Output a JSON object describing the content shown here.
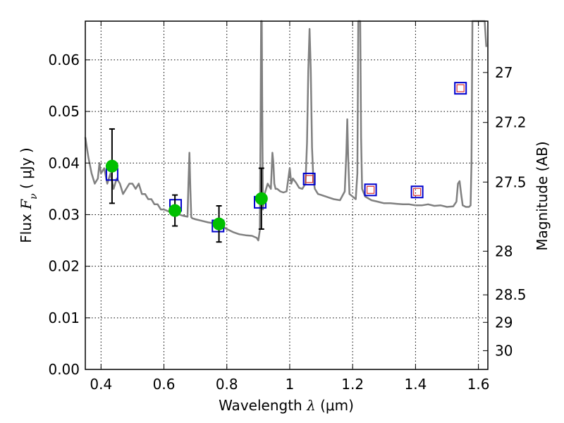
{
  "chart_data": {
    "type": "scatter",
    "xlabel_prefix": "Wavelength  ",
    "xlabel_symbol": "λ",
    "xlabel_unit": " (μm)",
    "ylabel_prefix": "Flux  ",
    "ylabel_symbol": "F",
    "ylabel_subscript": "ν",
    "ylabel_unit": "  ( μJy )",
    "y2label": "Magnitude (AB)",
    "xlim": [
      0.35,
      1.63
    ],
    "ylim": [
      0.0,
      0.0675
    ],
    "grid": true,
    "x_ticks": [
      0.4,
      0.6,
      0.8,
      1.0,
      1.2,
      1.4,
      1.6
    ],
    "x_tick_labels": [
      "0.4",
      "0.6",
      "0.8",
      "1",
      "1.2",
      "1.4",
      "1.6"
    ],
    "y_ticks": [
      0.0,
      0.01,
      0.02,
      0.03,
      0.04,
      0.05,
      0.06
    ],
    "y_tick_labels": [
      "0.00",
      "0.01",
      "0.02",
      "0.03",
      "0.04",
      "0.05",
      "0.06"
    ],
    "y2_ticks": [
      27.0,
      27.2,
      27.5,
      28.0,
      28.5,
      29.0,
      30.0
    ],
    "y2_tick_labels": [
      "27",
      "27.2",
      "27.5",
      "28",
      "28.5",
      "29",
      "30"
    ],
    "colors": {
      "sed": "#808080",
      "observed": "#00c000",
      "model_box": "#0000cc",
      "inner_box": "#dd3333",
      "errorbar": "#000000",
      "grid": "#000000"
    },
    "observed": [
      {
        "x": 0.435,
        "y": 0.0394,
        "err": 0.0072
      },
      {
        "x": 0.635,
        "y": 0.0308,
        "err": 0.003
      },
      {
        "x": 0.775,
        "y": 0.0282,
        "err": 0.0035
      },
      {
        "x": 0.91,
        "y": 0.0331,
        "err": 0.0059
      }
    ],
    "model_points": [
      {
        "x": 0.435,
        "y": 0.0378,
        "inner": false
      },
      {
        "x": 0.637,
        "y": 0.0318,
        "inner": false
      },
      {
        "x": 0.772,
        "y": 0.0278,
        "inner": false
      },
      {
        "x": 0.906,
        "y": 0.0324,
        "inner": false
      },
      {
        "x": 1.062,
        "y": 0.0369,
        "inner": true
      },
      {
        "x": 1.257,
        "y": 0.0348,
        "inner": true
      },
      {
        "x": 1.405,
        "y": 0.0344,
        "inner": true
      },
      {
        "x": 1.543,
        "y": 0.0545,
        "inner": true
      }
    ],
    "sed_x": [
      0.35,
      0.355,
      0.36,
      0.37,
      0.38,
      0.39,
      0.395,
      0.4,
      0.41,
      0.42,
      0.43,
      0.44,
      0.45,
      0.46,
      0.47,
      0.48,
      0.49,
      0.5,
      0.51,
      0.52,
      0.53,
      0.54,
      0.55,
      0.56,
      0.57,
      0.58,
      0.59,
      0.6,
      0.62,
      0.64,
      0.66,
      0.675,
      0.678,
      0.681,
      0.684,
      0.687,
      0.69,
      0.7,
      0.72,
      0.74,
      0.76,
      0.78,
      0.8,
      0.82,
      0.84,
      0.86,
      0.88,
      0.895,
      0.9,
      0.905,
      0.907,
      0.909,
      0.911,
      0.913,
      0.915,
      0.92,
      0.93,
      0.94,
      0.945,
      0.948,
      0.951,
      0.955,
      0.96,
      0.97,
      0.98,
      0.99,
      1.0,
      1.005,
      1.01,
      1.02,
      1.03,
      1.04,
      1.05,
      1.055,
      1.059,
      1.063,
      1.067,
      1.071,
      1.075,
      1.08,
      1.09,
      1.1,
      1.12,
      1.14,
      1.16,
      1.175,
      1.18,
      1.183,
      1.186,
      1.19,
      1.2,
      1.21,
      1.215,
      1.218,
      1.221,
      1.224,
      1.227,
      1.23,
      1.24,
      1.26,
      1.28,
      1.3,
      1.32,
      1.34,
      1.36,
      1.38,
      1.4,
      1.42,
      1.44,
      1.46,
      1.48,
      1.5,
      1.52,
      1.53,
      1.535,
      1.54,
      1.545,
      1.55,
      1.56,
      1.57,
      1.575,
      1.578,
      1.581,
      1.584,
      1.587,
      1.59,
      1.6,
      1.61,
      1.62,
      1.625
    ],
    "sed_y": [
      0.045,
      0.043,
      0.041,
      0.038,
      0.036,
      0.037,
      0.04,
      0.038,
      0.039,
      0.036,
      0.038,
      0.035,
      0.037,
      0.036,
      0.034,
      0.035,
      0.036,
      0.036,
      0.035,
      0.036,
      0.034,
      0.034,
      0.033,
      0.033,
      0.032,
      0.032,
      0.031,
      0.031,
      0.0305,
      0.0302,
      0.0298,
      0.0296,
      0.036,
      0.042,
      0.035,
      0.0295,
      0.0293,
      0.0291,
      0.0288,
      0.0285,
      0.0283,
      0.028,
      0.0272,
      0.0266,
      0.0262,
      0.026,
      0.0259,
      0.0255,
      0.025,
      0.027,
      0.045,
      0.0675,
      0.0675,
      0.045,
      0.031,
      0.034,
      0.036,
      0.035,
      0.042,
      0.04,
      0.036,
      0.035,
      0.035,
      0.0345,
      0.0343,
      0.0345,
      0.039,
      0.036,
      0.037,
      0.0362,
      0.0352,
      0.035,
      0.036,
      0.044,
      0.058,
      0.066,
      0.058,
      0.043,
      0.037,
      0.035,
      0.034,
      0.0338,
      0.0334,
      0.033,
      0.0328,
      0.0345,
      0.042,
      0.0485,
      0.041,
      0.034,
      0.0335,
      0.033,
      0.038,
      0.0675,
      0.0675,
      0.0675,
      0.045,
      0.035,
      0.0335,
      0.0328,
      0.0325,
      0.0322,
      0.0322,
      0.0321,
      0.032,
      0.032,
      0.0318,
      0.0318,
      0.032,
      0.0317,
      0.0318,
      0.0315,
      0.0316,
      0.0325,
      0.036,
      0.0365,
      0.034,
      0.0318,
      0.0315,
      0.0315,
      0.0318,
      0.04,
      0.0675,
      0.0675,
      0.0675,
      0.0675,
      0.0675,
      0.0675,
      0.0675,
      0.0625
    ]
  }
}
